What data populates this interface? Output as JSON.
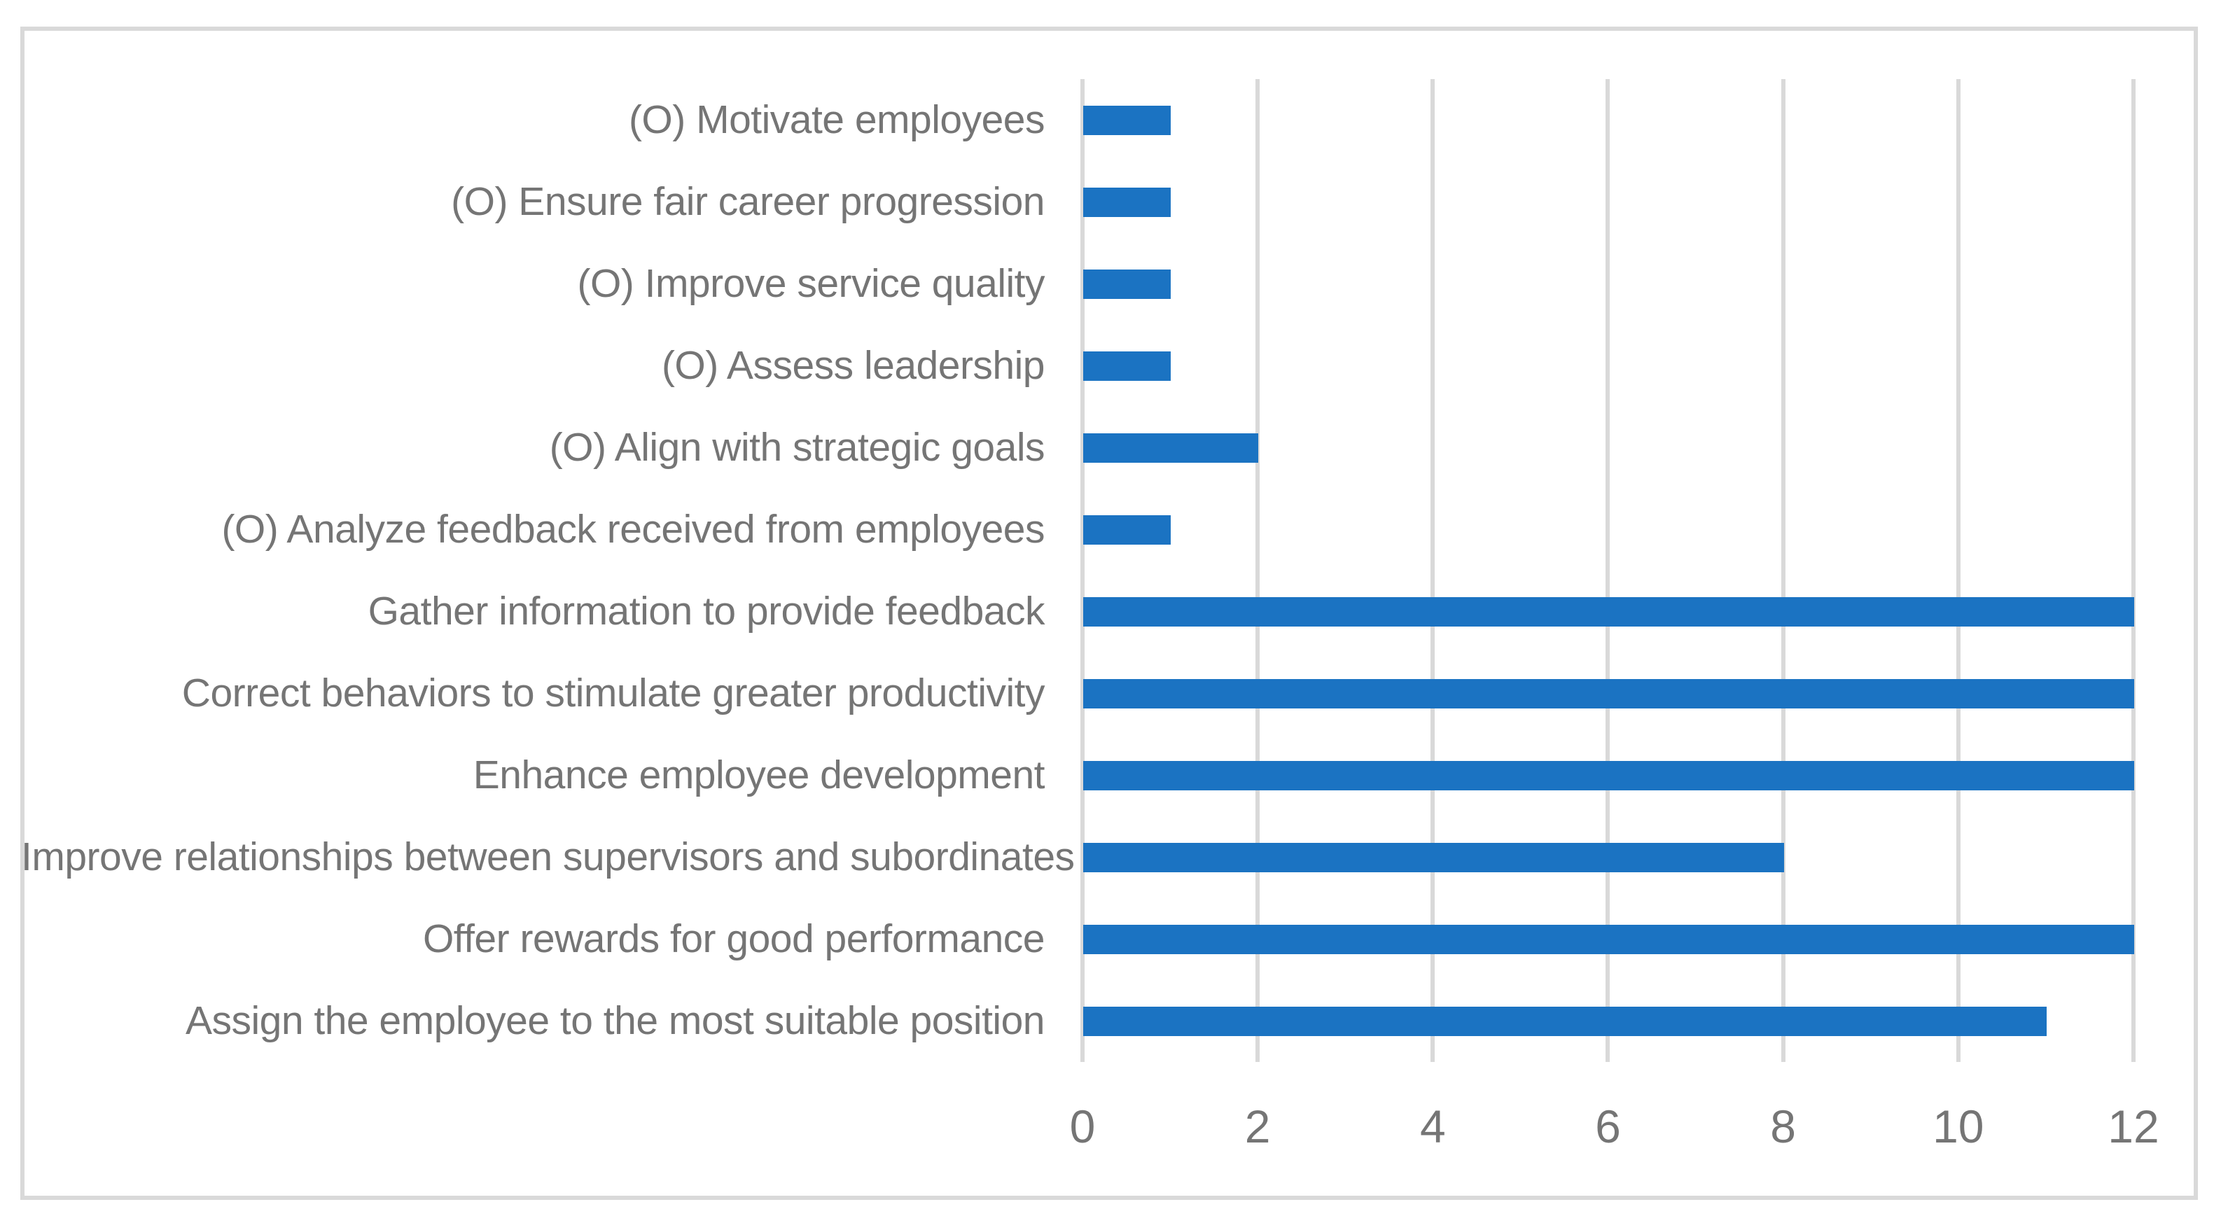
{
  "chart_data": {
    "type": "bar",
    "orientation": "horizontal",
    "title": "",
    "xlabel": "",
    "ylabel": "",
    "categories": [
      "(O) Motivate employees",
      "(O) Ensure fair career progression",
      "(O) Improve service quality",
      "(O) Assess leadership",
      "(O) Align with strategic goals",
      "(O) Analyze feedback received from employees",
      "Gather information to provide feedback",
      "Correct behaviors to stimulate greater productivity",
      "Enhance employee development",
      "Improve relationships between supervisors and subordinates",
      "Offer rewards for good performance",
      "Assign the employee to the most suitable position"
    ],
    "values": [
      1,
      1,
      1,
      1,
      2,
      1,
      12,
      12,
      12,
      8,
      12,
      11
    ],
    "xlim": [
      0,
      12
    ],
    "x_ticks": [
      "0",
      "2",
      "4",
      "6",
      "8",
      "10",
      "12"
    ],
    "grid": "vertical major gridlines",
    "legend_position": "none",
    "colors": {
      "bar": "#1B73C2",
      "gridline": "#D9D9D9",
      "frame_border": "#D9D9D9",
      "axis_text": "#757575",
      "background": "#FFFFFF"
    }
  }
}
